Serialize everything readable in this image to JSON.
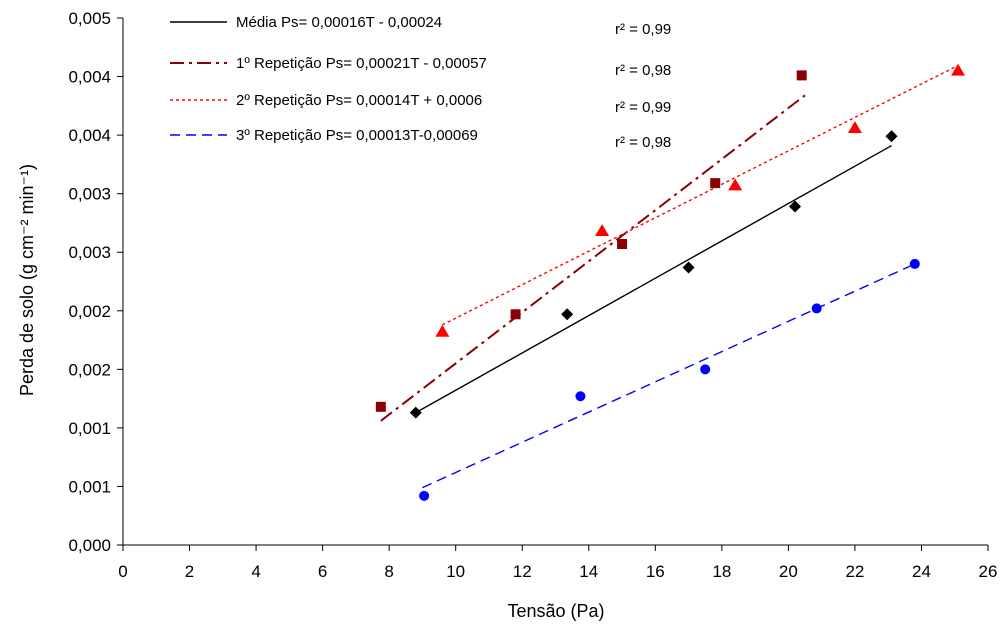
{
  "chart_data": {
    "type": "scatter",
    "xlabel": "Tensão (Pa)",
    "ylabel": "Perda de solo (g cm⁻² min⁻¹)",
    "xlim": [
      0,
      26
    ],
    "ylim": [
      0,
      0.0045
    ],
    "x_ticks": [
      "0",
      "2",
      "4",
      "6",
      "8",
      "10",
      "12",
      "14",
      "16",
      "18",
      "20",
      "22",
      "24",
      "26"
    ],
    "y_ticks": [
      "0,000",
      "0,001",
      "0,001",
      "0,002",
      "0,002",
      "0,003",
      "0,003",
      "0,004",
      "0,004",
      "0,005"
    ],
    "grid": false,
    "legend_position": "top-left",
    "series": [
      {
        "name": "Média Ps= 0,00016T - 0,00024",
        "r2": "r² = 0,99",
        "marker": "diamond",
        "color": "#000000",
        "line_style": "solid",
        "points": [
          [
            8.8,
            0.00113
          ],
          [
            13.35,
            0.00197
          ],
          [
            17.0,
            0.00237
          ],
          [
            20.2,
            0.00289
          ],
          [
            23.1,
            0.00349
          ]
        ],
        "fit": [
          [
            8.8,
            0.00113
          ],
          [
            23.1,
            0.00341
          ]
        ]
      },
      {
        "name": "1º Repetição Ps= 0,00021T - 0,00057",
        "r2": "r² = 0,98",
        "marker": "square",
        "color": "#8b0000",
        "line_style": "dash-dot",
        "points": [
          [
            7.75,
            0.00118
          ],
          [
            11.8,
            0.00197
          ],
          [
            15.0,
            0.00257
          ],
          [
            17.8,
            0.00309
          ],
          [
            20.4,
            0.00401
          ]
        ],
        "fit": [
          [
            7.75,
            0.00106
          ],
          [
            20.5,
            0.00384
          ]
        ]
      },
      {
        "name": "2º Repetição Ps= 0,00014T + 0,0006",
        "r2": "r² = 0,99",
        "marker": "triangle",
        "color": "#ff0000",
        "line_style": "dotted",
        "points": [
          [
            9.6,
            0.00182
          ],
          [
            14.4,
            0.00268
          ],
          [
            18.4,
            0.00307
          ],
          [
            22.0,
            0.00356
          ],
          [
            25.1,
            0.00405
          ]
        ],
        "fit": [
          [
            9.6,
            0.00188
          ],
          [
            25.0,
            0.00408
          ]
        ]
      },
      {
        "name": "3º Repetição Ps= 0,00013T-0,00069",
        "r2": "r² = 0,98",
        "marker": "circle",
        "color": "#0000ff",
        "line_style": "dashed",
        "points": [
          [
            9.05,
            0.00042
          ],
          [
            13.75,
            0.00127
          ],
          [
            17.5,
            0.0015
          ],
          [
            20.85,
            0.00202
          ],
          [
            23.8,
            0.0024
          ]
        ],
        "fit": [
          [
            9.0,
            0.00049
          ],
          [
            23.8,
            0.0024
          ]
        ]
      }
    ]
  }
}
